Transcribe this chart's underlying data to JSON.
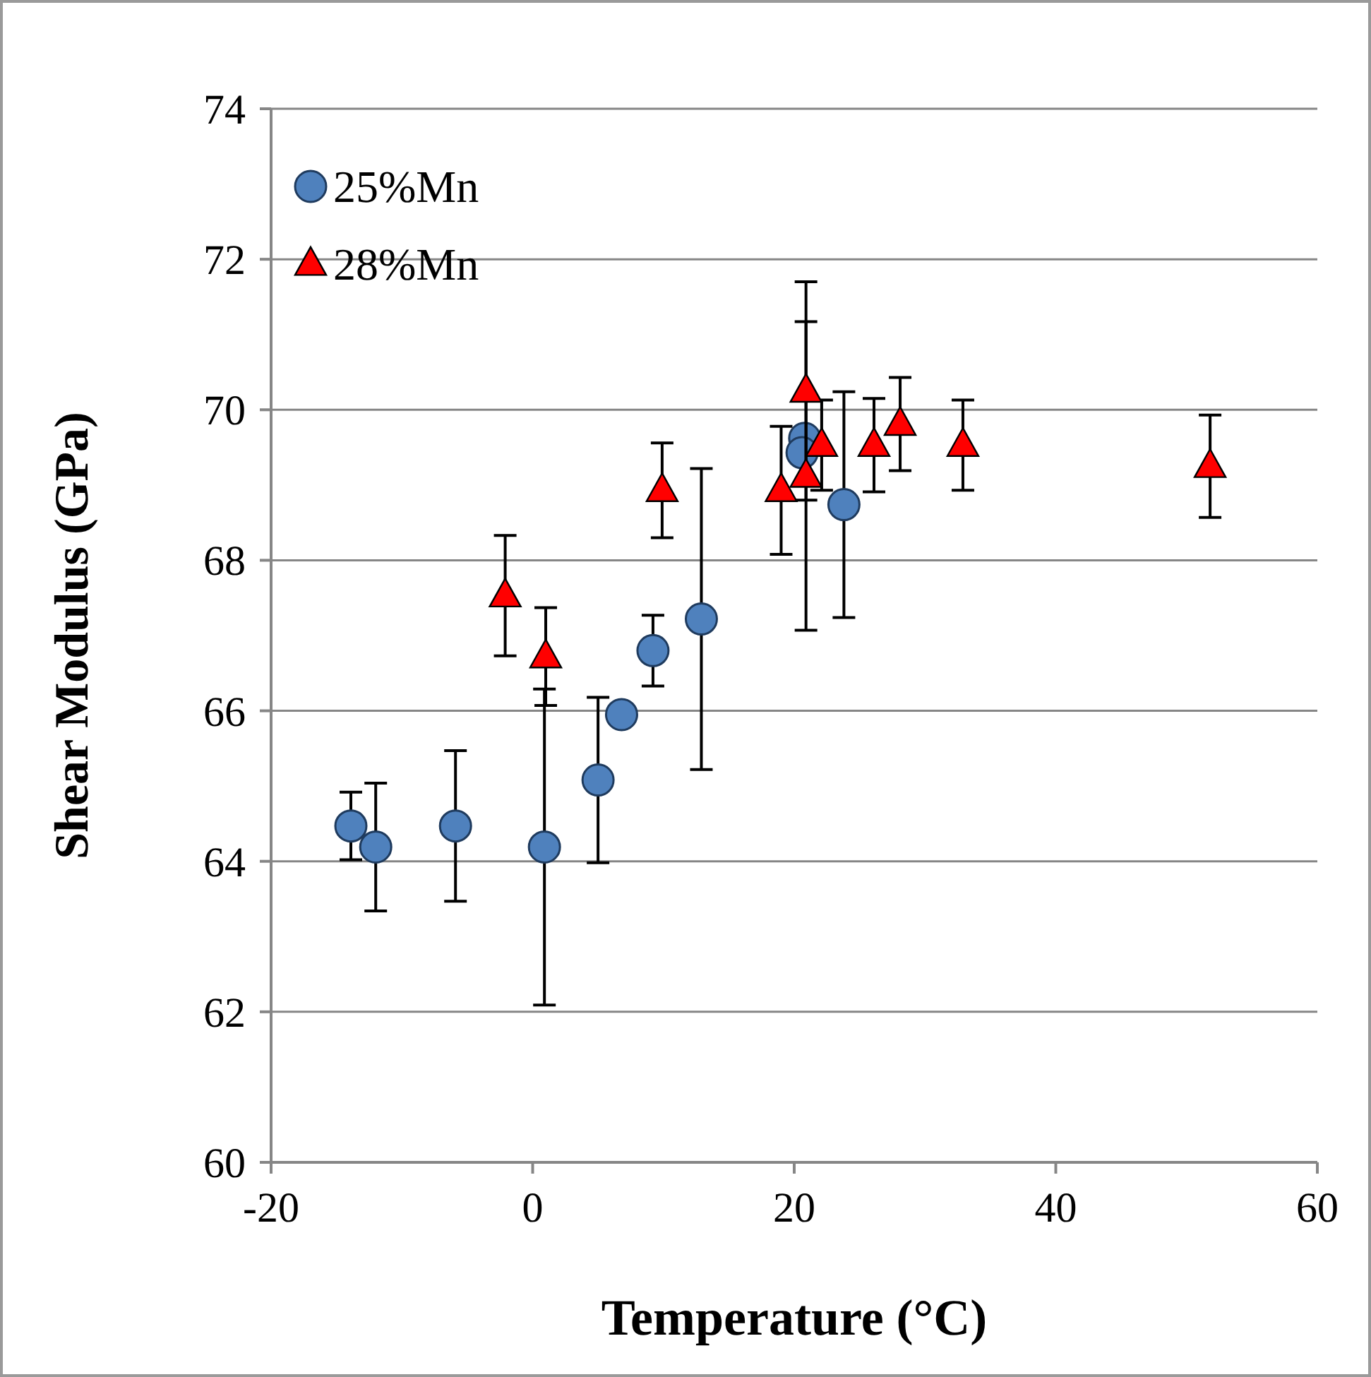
{
  "chart_data": {
    "type": "scatter",
    "xlabel": "Temperature (°C)",
    "ylabel": "Shear Modulus (GPa)",
    "xlim": [
      -20,
      60
    ],
    "xticks": [
      -20,
      0,
      20,
      40,
      60
    ],
    "ylim": [
      60,
      74
    ],
    "yticks": [
      60,
      62,
      64,
      66,
      68,
      70,
      72,
      74
    ],
    "grid": "y",
    "legend": "top left",
    "series": [
      {
        "name": "25%Mn",
        "color": "#4f81bd",
        "marker": "circle",
        "x": [
          -13.9,
          -12.0,
          -5.9,
          0.9,
          5.0,
          6.8,
          9.2,
          12.9,
          20.8,
          20.6,
          23.8
        ],
        "values": [
          64.47,
          64.19,
          64.47,
          64.19,
          65.08,
          65.95,
          66.8,
          67.22,
          69.62,
          69.43,
          68.74
        ],
        "errors": [
          0.45,
          0.85,
          1.0,
          2.1,
          1.1,
          null,
          0.47,
          2.0,
          null,
          null,
          1.5
        ]
      },
      {
        "name": "28%Mn",
        "color": "#ff0000",
        "marker": "triangle",
        "x": [
          -2.1,
          1.0,
          9.9,
          19.0,
          20.9,
          20.9,
          22.1,
          26.1,
          28.1,
          32.9,
          51.8
        ],
        "values": [
          67.53,
          66.72,
          68.93,
          68.93,
          70.25,
          69.12,
          69.53,
          69.53,
          69.81,
          69.53,
          69.25
        ],
        "errors": [
          0.8,
          0.65,
          0.63,
          0.85,
          1.45,
          2.05,
          0.6,
          0.62,
          0.62,
          0.6,
          0.68
        ]
      }
    ]
  }
}
